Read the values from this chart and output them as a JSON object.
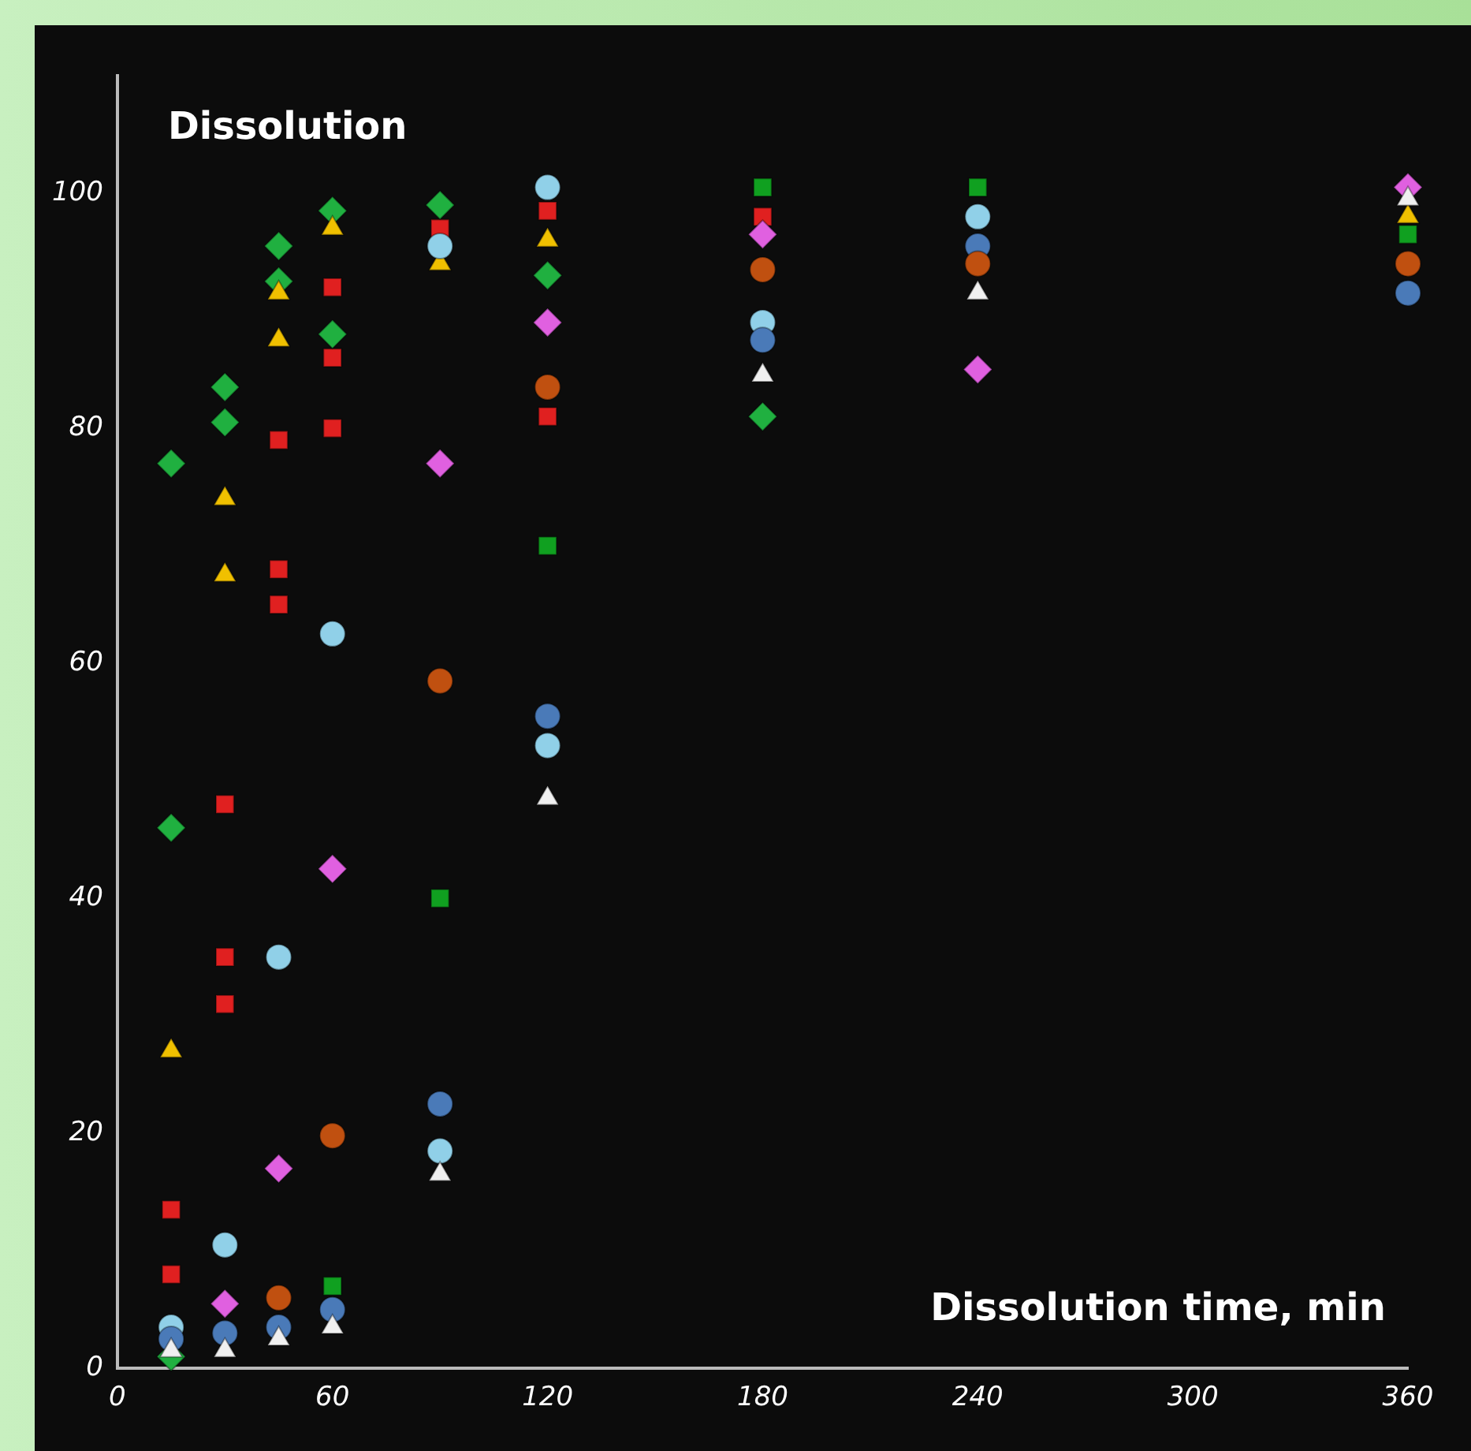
{
  "chart_data": {
    "type": "scatter",
    "xlabel": "Dissolution time, min",
    "ylabel": "Dissolution",
    "xlim": [
      0,
      360
    ],
    "xticks": [
      0,
      60,
      120,
      180,
      240,
      300,
      360
    ],
    "ylim": [
      0,
      110
    ],
    "yticks": [
      0,
      20,
      40,
      60,
      80,
      100
    ],
    "grid": false,
    "legend": false,
    "series": [
      {
        "color": "#e02020",
        "marker": "square",
        "x": [
          15,
          15,
          30,
          30,
          30,
          45,
          45,
          45,
          60,
          60,
          60,
          90,
          120,
          120,
          180
        ],
        "values": [
          13.5,
          8,
          48,
          35,
          31,
          79,
          68,
          65,
          92,
          86,
          80,
          97,
          98.5,
          81,
          98
        ]
      },
      {
        "color": "#20b040",
        "marker": "diamond",
        "x": [
          15,
          15,
          15,
          30,
          30,
          45,
          45,
          60,
          60,
          90,
          120,
          180
        ],
        "values": [
          77,
          46,
          1,
          83.5,
          80.5,
          95.5,
          92.5,
          98.5,
          88,
          99,
          93,
          81
        ]
      },
      {
        "color": "#10a020",
        "marker": "square",
        "x": [
          60,
          90,
          120,
          180,
          240,
          360
        ],
        "values": [
          7,
          40,
          70,
          100.5,
          100.5,
          96.5
        ]
      },
      {
        "color": "#f0c000",
        "marker": "triangle",
        "x": [
          15,
          30,
          30,
          45,
          45,
          60,
          90,
          120,
          360
        ],
        "values": [
          27,
          74,
          67.5,
          91.5,
          87.5,
          97,
          94,
          96,
          98
        ]
      },
      {
        "color": "#e060e0",
        "marker": "diamond",
        "x": [
          30,
          45,
          60,
          90,
          120,
          180,
          240,
          360
        ],
        "values": [
          5.5,
          17,
          42.5,
          77,
          89,
          96.5,
          85,
          100.5
        ]
      },
      {
        "color": "#90d0e8",
        "marker": "circle",
        "x": [
          15,
          30,
          45,
          60,
          90,
          90,
          120,
          120,
          180,
          240
        ],
        "values": [
          3.5,
          10.5,
          35,
          62.5,
          95.5,
          18.5,
          100.5,
          53,
          89,
          98
        ]
      },
      {
        "color": "#4a7ab8",
        "marker": "circle",
        "x": [
          15,
          30,
          45,
          60,
          90,
          120,
          180,
          240,
          360
        ],
        "values": [
          2.5,
          3,
          3.5,
          5,
          22.5,
          55.5,
          87.5,
          95.5,
          91.5
        ]
      },
      {
        "color": "#c05010",
        "marker": "circle",
        "x": [
          45,
          60,
          90,
          120,
          180,
          240,
          360
        ],
        "values": [
          6,
          19.8,
          58.5,
          83.5,
          93.5,
          94,
          94
        ]
      },
      {
        "color": "#f0f0f0",
        "marker": "triangle",
        "x": [
          15,
          30,
          45,
          60,
          90,
          120,
          180,
          240,
          360
        ],
        "values": [
          1.5,
          1.5,
          2.5,
          3.5,
          16.5,
          48.5,
          84.5,
          91.5,
          99.5
        ]
      }
    ]
  }
}
